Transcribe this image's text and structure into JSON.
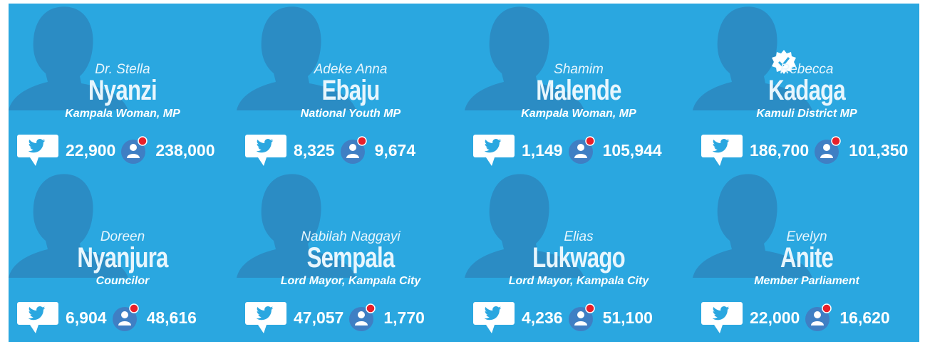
{
  "cards": [
    {
      "first_name": "Dr. Stella",
      "surname": "Nyanzi",
      "role": "Kampala Woman, MP",
      "tweets": "22,900",
      "followers": "238,000"
    },
    {
      "first_name": "Adeke Anna",
      "surname": "Ebaju",
      "role": "National Youth MP",
      "tweets": "8,325",
      "followers": "9,674"
    },
    {
      "first_name": "Shamim",
      "surname": "Malende",
      "role": "Kampala Woman, MP",
      "tweets": "1,149",
      "followers": "105,944"
    },
    {
      "first_name": "Rebecca",
      "surname": "Kadaga",
      "role": "Kamuli District MP",
      "tweets": "186,700",
      "followers": "101,350",
      "verified": true
    },
    {
      "first_name": "Doreen",
      "surname": "Nyanjura",
      "role": "Councilor",
      "tweets": "6,904",
      "followers": "48,616"
    },
    {
      "first_name": "Nabilah Naggayi",
      "surname": "Sempala",
      "role": "Lord Mayor, Kampala City",
      "tweets": "47,057",
      "followers": "1,770"
    },
    {
      "first_name": "Elias",
      "surname": "Lukwago",
      "role": "Lord Mayor, Kampala City",
      "tweets": "4,236",
      "followers": "51,100"
    },
    {
      "first_name": "Evelyn",
      "surname": "Anite",
      "role": "Member Parliament",
      "tweets": "22,000",
      "followers": "16,620"
    }
  ]
}
